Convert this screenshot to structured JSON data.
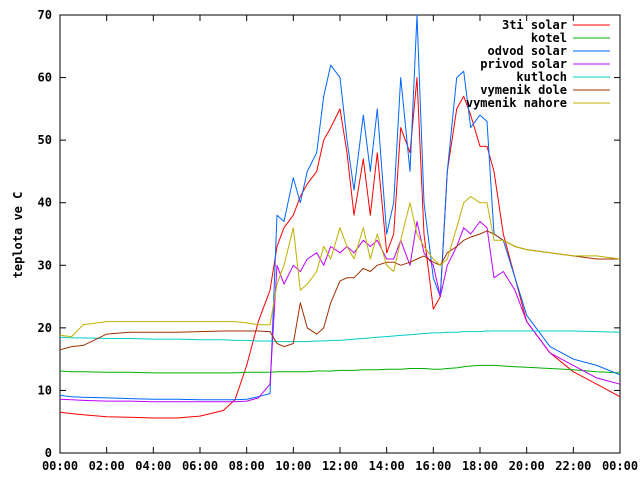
{
  "chart_data": {
    "type": "line",
    "title": "",
    "xlabel": "",
    "ylabel": "teplota ve C",
    "xlim": [
      0,
      24
    ],
    "ylim": [
      0,
      70
    ],
    "xticks": [
      "00:00",
      "02:00",
      "04:00",
      "06:00",
      "08:00",
      "10:00",
      "12:00",
      "14:00",
      "16:00",
      "18:00",
      "20:00",
      "22:00",
      "00:00"
    ],
    "yticks": [
      0,
      10,
      20,
      30,
      40,
      50,
      60,
      70
    ],
    "grid": false,
    "legend": "top-right",
    "x_hours": [
      0,
      0.5,
      1,
      2,
      3,
      4,
      5,
      6,
      7,
      7.5,
      8,
      8.5,
      9,
      9.3,
      9.6,
      10,
      10.3,
      10.6,
      11,
      11.3,
      11.6,
      12,
      12.3,
      12.6,
      13,
      13.3,
      13.6,
      14,
      14.3,
      14.6,
      15,
      15.3,
      15.6,
      16,
      16.3,
      16.6,
      17,
      17.3,
      17.6,
      18,
      18.3,
      18.6,
      19,
      19.5,
      20,
      21,
      22,
      23,
      24
    ],
    "series": [
      {
        "name": "3ti solar",
        "color": "#ff0000",
        "values": [
          6.5,
          6.3,
          6.1,
          5.8,
          5.7,
          5.6,
          5.6,
          5.9,
          6.8,
          8.5,
          14,
          21,
          26,
          33,
          36,
          38,
          41,
          43,
          45,
          50,
          52,
          55,
          48,
          38,
          47,
          38,
          48,
          32,
          35,
          52,
          48,
          60,
          35,
          23,
          25,
          45,
          55,
          57,
          54,
          49,
          49,
          45,
          35,
          28,
          21,
          16,
          13,
          11,
          9
        ]
      },
      {
        "name": "kotel",
        "color": "#00b000",
        "values": [
          13.1,
          13.0,
          13.0,
          12.9,
          12.9,
          12.8,
          12.8,
          12.8,
          12.8,
          12.8,
          12.9,
          12.9,
          12.9,
          13.0,
          13.0,
          13.0,
          13.0,
          13.0,
          13.1,
          13.1,
          13.1,
          13.2,
          13.2,
          13.2,
          13.3,
          13.3,
          13.3,
          13.4,
          13.4,
          13.4,
          13.5,
          13.5,
          13.5,
          13.4,
          13.4,
          13.5,
          13.6,
          13.8,
          13.9,
          14.0,
          14.0,
          14.0,
          13.9,
          13.8,
          13.7,
          13.5,
          13.3,
          13.0,
          12.8
        ]
      },
      {
        "name": "odvod solar",
        "color": "#0066ff",
        "values": [
          9.2,
          9.0,
          8.9,
          8.8,
          8.7,
          8.6,
          8.6,
          8.5,
          8.5,
          8.5,
          8.6,
          9.0,
          9.5,
          38,
          37,
          44,
          40,
          45,
          48,
          57,
          62,
          60,
          50,
          42,
          54,
          45,
          55,
          35,
          40,
          60,
          45,
          70,
          40,
          28,
          25,
          45,
          60,
          61,
          52,
          54,
          53,
          35,
          34,
          28,
          22,
          17,
          15,
          14,
          12.5
        ]
      },
      {
        "name": "privod solar",
        "color": "#c000ff",
        "values": [
          8.6,
          8.5,
          8.4,
          8.3,
          8.3,
          8.2,
          8.2,
          8.2,
          8.2,
          8.2,
          8.3,
          8.8,
          11,
          30,
          27,
          30,
          29,
          31,
          32,
          30,
          33,
          32,
          33,
          32,
          34,
          33,
          34,
          31,
          31,
          34,
          30,
          37,
          32,
          30,
          25,
          30,
          33,
          36,
          35,
          37,
          36,
          28,
          29,
          26,
          21,
          16,
          14,
          12,
          11
        ]
      },
      {
        "name": "kutloch",
        "color": "#00cccc",
        "values": [
          18.5,
          18.4,
          18.4,
          18.3,
          18.3,
          18.2,
          18.2,
          18.1,
          18.1,
          18.0,
          18.0,
          17.9,
          17.9,
          17.8,
          17.8,
          17.8,
          17.8,
          17.8,
          17.9,
          17.9,
          18.0,
          18.0,
          18.1,
          18.2,
          18.3,
          18.4,
          18.5,
          18.6,
          18.7,
          18.8,
          18.9,
          19.0,
          19.1,
          19.2,
          19.2,
          19.3,
          19.3,
          19.4,
          19.4,
          19.4,
          19.5,
          19.5,
          19.5,
          19.5,
          19.5,
          19.5,
          19.5,
          19.4,
          19.3
        ]
      },
      {
        "name": "vymenik dole",
        "color": "#a03000",
        "values": [
          16.5,
          17,
          17.2,
          19,
          19.3,
          19.3,
          19.3,
          19.4,
          19.5,
          19.5,
          19.5,
          19.5,
          19.4,
          17.5,
          17,
          17.5,
          24,
          20,
          19,
          20,
          24,
          27.5,
          28,
          28,
          29.5,
          29,
          30,
          30.5,
          30.5,
          30,
          30.5,
          31,
          31.5,
          30.5,
          30,
          32,
          33,
          34,
          34.5,
          35,
          35.5,
          35,
          34,
          33,
          32.5,
          32,
          31.5,
          31,
          31
        ]
      },
      {
        "name": "vymenik nahore",
        "color": "#c0b000",
        "values": [
          18.8,
          18.6,
          20.5,
          21,
          21,
          21,
          21,
          21,
          21,
          21,
          20.8,
          20.5,
          20.5,
          27,
          30,
          36,
          26,
          27,
          29,
          33,
          31,
          36,
          33,
          31,
          36,
          31,
          35,
          30,
          29,
          34,
          40,
          35,
          33,
          31,
          30,
          31,
          36,
          40,
          41,
          40,
          40,
          34,
          34,
          33,
          32.5,
          32,
          31.5,
          31.5,
          31
        ]
      }
    ]
  }
}
